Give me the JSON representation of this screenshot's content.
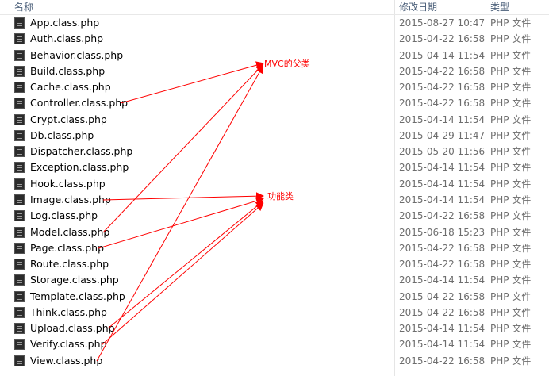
{
  "columns": {
    "name": "名称",
    "modified": "修改日期",
    "type": "类型"
  },
  "files": [
    {
      "name": "App.class.php",
      "date": "2015-08-27 10:47",
      "type": "PHP 文件"
    },
    {
      "name": "Auth.class.php",
      "date": "2015-04-22 16:58",
      "type": "PHP 文件"
    },
    {
      "name": "Behavior.class.php",
      "date": "2015-04-14 11:54",
      "type": "PHP 文件"
    },
    {
      "name": "Build.class.php",
      "date": "2015-04-22 16:58",
      "type": "PHP 文件"
    },
    {
      "name": "Cache.class.php",
      "date": "2015-04-22 16:58",
      "type": "PHP 文件"
    },
    {
      "name": "Controller.class.php",
      "date": "2015-04-22 16:58",
      "type": "PHP 文件"
    },
    {
      "name": "Crypt.class.php",
      "date": "2015-04-14 11:54",
      "type": "PHP 文件"
    },
    {
      "name": "Db.class.php",
      "date": "2015-04-29 11:47",
      "type": "PHP 文件"
    },
    {
      "name": "Dispatcher.class.php",
      "date": "2015-05-20 11:56",
      "type": "PHP 文件"
    },
    {
      "name": "Exception.class.php",
      "date": "2015-04-14 11:54",
      "type": "PHP 文件"
    },
    {
      "name": "Hook.class.php",
      "date": "2015-04-14 11:54",
      "type": "PHP 文件"
    },
    {
      "name": "Image.class.php",
      "date": "2015-04-14 11:54",
      "type": "PHP 文件"
    },
    {
      "name": "Log.class.php",
      "date": "2015-04-22 16:58",
      "type": "PHP 文件"
    },
    {
      "name": "Model.class.php",
      "date": "2015-06-18 15:23",
      "type": "PHP 文件"
    },
    {
      "name": "Page.class.php",
      "date": "2015-04-22 16:58",
      "type": "PHP 文件"
    },
    {
      "name": "Route.class.php",
      "date": "2015-04-22 16:58",
      "type": "PHP 文件"
    },
    {
      "name": "Storage.class.php",
      "date": "2015-04-14 11:54",
      "type": "PHP 文件"
    },
    {
      "name": "Template.class.php",
      "date": "2015-04-22 16:58",
      "type": "PHP 文件"
    },
    {
      "name": "Think.class.php",
      "date": "2015-04-22 16:58",
      "type": "PHP 文件"
    },
    {
      "name": "Upload.class.php",
      "date": "2015-04-14 11:54",
      "type": "PHP 文件"
    },
    {
      "name": "Verify.class.php",
      "date": "2015-04-14 11:54",
      "type": "PHP 文件"
    },
    {
      "name": "View.class.php",
      "date": "2015-04-22 16:58",
      "type": "PHP 文件"
    }
  ],
  "annotations": {
    "mvc_label": "MVC的父类",
    "func_label": "功能类",
    "color": "#ff0000"
  }
}
